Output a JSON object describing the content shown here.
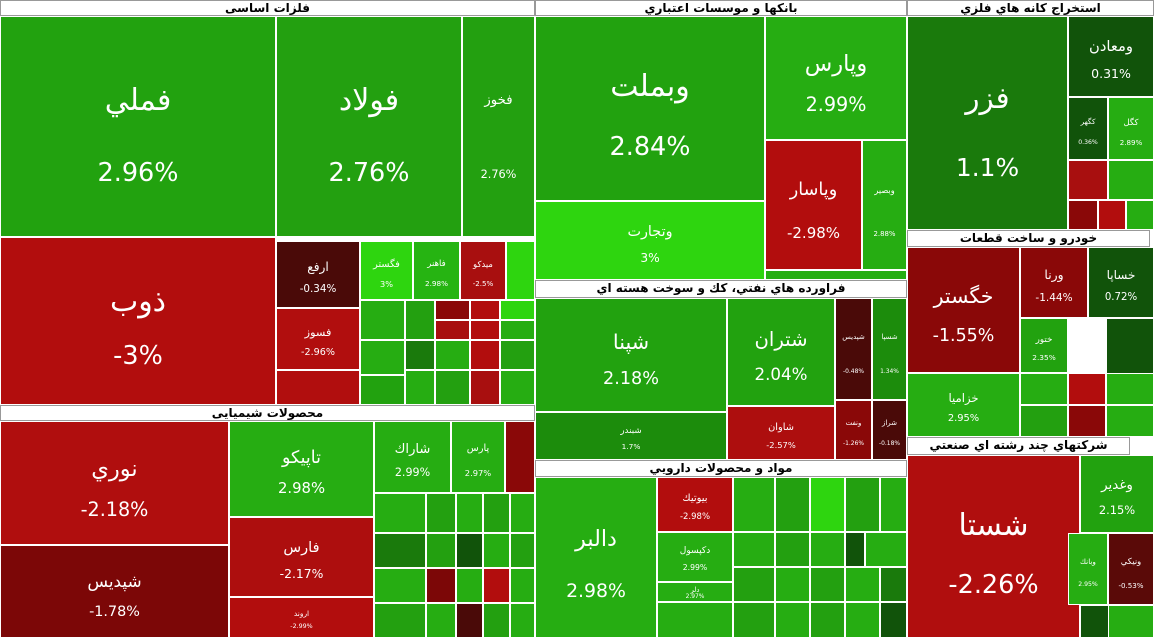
{
  "sectors": [
    {
      "title": "فلزات اساسی",
      "tiles": [
        {
          "name": "فملي",
          "change": "2.96%",
          "color": "#22a20f"
        },
        {
          "name": "فولاد",
          "change": "2.76%",
          "color": "#23a010"
        },
        {
          "name": "فخوز",
          "change": "2.76%",
          "color": "#23a010"
        },
        {
          "name": "ذوب",
          "change": "-3%",
          "color": "#b20d0d"
        },
        {
          "name": "ارفع",
          "change": "-0.34%",
          "color": "#4a0a08"
        },
        {
          "name": "فسوز",
          "change": "-2.96%",
          "color": "#b10e0e"
        },
        {
          "name": "فگستر",
          "change": "3%",
          "color": "#2ed50f"
        },
        {
          "name": "فاهنر",
          "change": "2.98%",
          "color": "#26b412"
        },
        {
          "name": "میدکو",
          "change": "-2.5%",
          "color": "#a80f0f"
        }
      ]
    },
    {
      "title": "محصولات شیمیایی",
      "tiles": [
        {
          "name": "نوري",
          "change": "-2.18%",
          "color": "#b00e0e"
        },
        {
          "name": "شپديس",
          "change": "-1.78%",
          "color": "#7c0707"
        },
        {
          "name": "تاپيكو",
          "change": "2.98%",
          "color": "#26ad12"
        },
        {
          "name": "فارس",
          "change": "-2.17%",
          "color": "#ad0e0e"
        },
        {
          "name": "اروند",
          "change": "-2.99%",
          "color": "#b20d0d"
        },
        {
          "name": "شاراك",
          "change": "2.99%",
          "color": "#26ad12"
        },
        {
          "name": "پارس",
          "change": "2.97%",
          "color": "#26ad12"
        }
      ]
    },
    {
      "title": "بانكها و موسسات اعتباري",
      "tiles": [
        {
          "name": "وبملت",
          "change": "2.84%",
          "color": "#22a20f"
        },
        {
          "name": "وتجارت",
          "change": "3%",
          "color": "#2ed50f"
        },
        {
          "name": "وپارس",
          "change": "2.99%",
          "color": "#26ad12"
        },
        {
          "name": "وپاسار",
          "change": "-2.98%",
          "color": "#b20d0d"
        },
        {
          "name": "وبصير",
          "change": "2.88%",
          "color": "#26ad12"
        }
      ]
    },
    {
      "title": "فراورده هاي نفتي، كك و سوخت هسته اي",
      "tiles": [
        {
          "name": "شپنا",
          "change": "2.18%",
          "color": "#22a20f"
        },
        {
          "name": "شبندر",
          "change": "1.7%",
          "color": "#1c8c0c"
        },
        {
          "name": "شتران",
          "change": "2.04%",
          "color": "#22a20f"
        },
        {
          "name": "شاوان",
          "change": "-2.57%",
          "color": "#ad0e0e"
        },
        {
          "name": "شپديس",
          "change": "-0.48%",
          "color": "#4a0a08"
        },
        {
          "name": "شسپا",
          "change": "1.34%",
          "color": "#1c8c0c"
        },
        {
          "name": "ونفت",
          "change": "-1.26%",
          "color": "#8a0808"
        },
        {
          "name": "شراز",
          "change": "-0.18%",
          "color": "#4a0a08"
        }
      ]
    },
    {
      "title": "مواد و محصولات دارويي",
      "tiles": [
        {
          "name": "دالبر",
          "change": "2.98%",
          "color": "#26ad12"
        },
        {
          "name": "بيوتيك",
          "change": "-2.98%",
          "color": "#b20d0d"
        },
        {
          "name": "دكپسول",
          "change": "2.99%",
          "color": "#26ad12"
        },
        {
          "name": "دلر",
          "change": "2.97%",
          "color": "#26ad12"
        }
      ]
    },
    {
      "title": "استخراج كانه هاي فلزي",
      "tiles": [
        {
          "name": "فزر",
          "change": "1.1%",
          "color": "#1a7a0c"
        },
        {
          "name": "ومعادن",
          "change": "0.31%",
          "color": "#11530a"
        },
        {
          "name": "كگهر",
          "change": "0.36%",
          "color": "#11530a"
        },
        {
          "name": "كگل",
          "change": "2.89%",
          "color": "#26ad12"
        }
      ]
    },
    {
      "title": "خودرو و ساخت قطعات",
      "tiles": [
        {
          "name": "خگستر",
          "change": "-1.55%",
          "color": "#8a0808"
        },
        {
          "name": "خزامیا",
          "change": "2.95%",
          "color": "#26ad12"
        },
        {
          "name": "ورنا",
          "change": "-1.44%",
          "color": "#8a0808"
        },
        {
          "name": "خساپا",
          "change": "0.72%",
          "color": "#11530a"
        },
        {
          "name": "ختور",
          "change": "2.35%",
          "color": "#22a20f"
        }
      ]
    },
    {
      "title": "شرکتهاي چند رشته اي صنعتي",
      "tiles": [
        {
          "name": "شستا",
          "change": "-2.26%",
          "color": "#b00e0e"
        },
        {
          "name": "وغدير",
          "change": "2.15%",
          "color": "#22a20f"
        },
        {
          "name": "وبانك",
          "change": "2.95%",
          "color": "#26ad12"
        },
        {
          "name": "ونيكي",
          "change": "-0.53%",
          "color": "#5a0a08"
        }
      ]
    }
  ]
}
